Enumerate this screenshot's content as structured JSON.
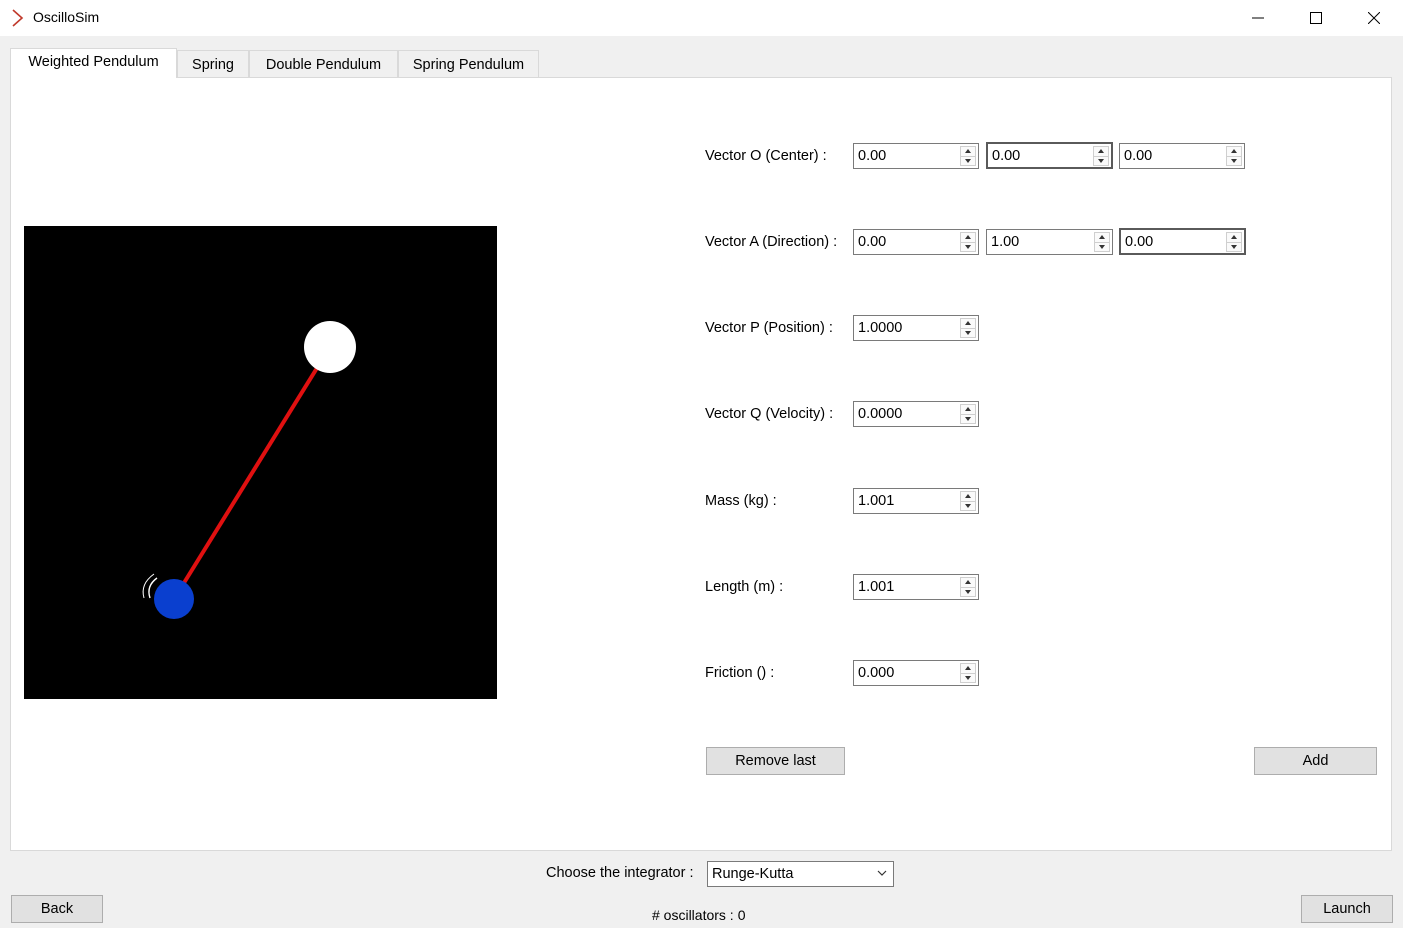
{
  "window": {
    "title": "OscilloSim",
    "minimize_icon": "minimize-icon",
    "maximize_icon": "maximize-icon",
    "close_icon": "close-icon"
  },
  "tabs": [
    {
      "label": "Weighted Pendulum",
      "active": true
    },
    {
      "label": "Spring",
      "active": false
    },
    {
      "label": "Double Pendulum",
      "active": false
    },
    {
      "label": "Spring Pendulum",
      "active": false
    }
  ],
  "form": {
    "vector_o": {
      "label": "Vector O (Center) :",
      "values": [
        "0.00",
        "0.00",
        "0.00"
      ]
    },
    "vector_a": {
      "label": "Vector A (Direction) :",
      "values": [
        "0.00",
        "1.00",
        "0.00"
      ]
    },
    "vector_p": {
      "label": "Vector P (Position) :",
      "value": "1.0000"
    },
    "vector_q": {
      "label": "Vector Q (Velocity) :",
      "value": "0.0000"
    },
    "mass": {
      "label": "Mass (kg) :",
      "value": "1.001"
    },
    "length": {
      "label": "Length (m) :",
      "value": "1.001"
    },
    "friction": {
      "label": "Friction () :",
      "value": "0.000"
    },
    "remove_label": "Remove last",
    "add_label": "Add"
  },
  "simulation": {
    "background": "#000000",
    "rod_color": "#e01010",
    "pivot_color": "#ffffff",
    "bob_color": "#0a3fcf"
  },
  "footer": {
    "integrator_label": "Choose the integrator :",
    "integrator_value": "Runge-Kutta",
    "back_label": "Back",
    "launch_label": "Launch",
    "oscillators_label": "# oscillators :",
    "oscillators_count": "0"
  }
}
